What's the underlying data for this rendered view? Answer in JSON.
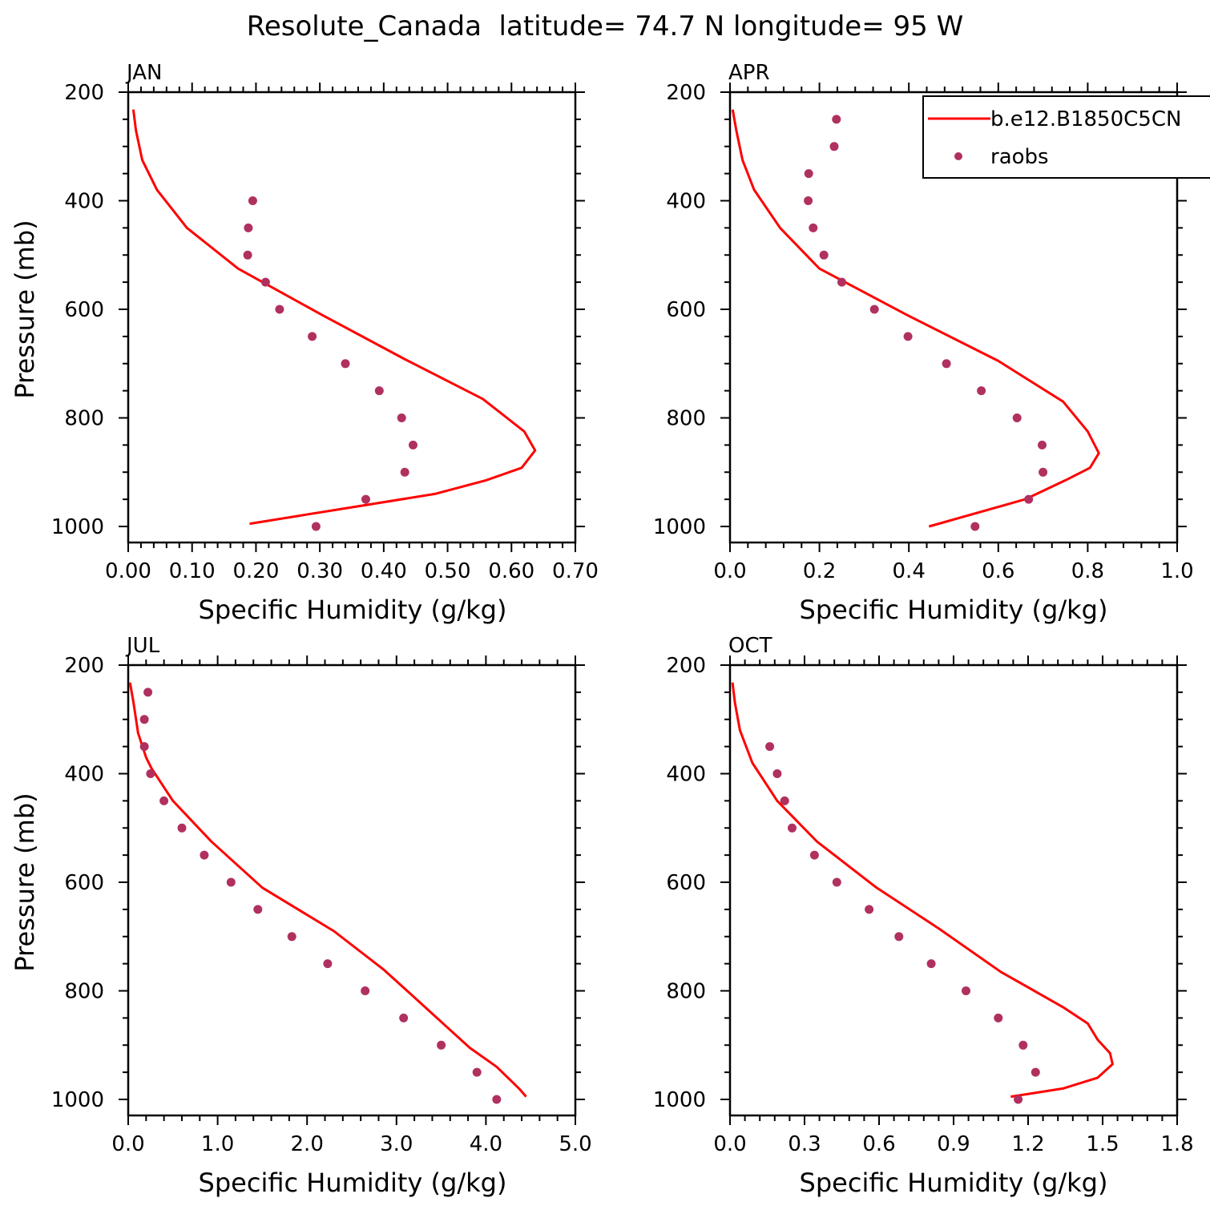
{
  "figure": {
    "title": "Resolute_Canada  latitude= 74.7 N longitude= 95 W"
  },
  "legend": {
    "model_label": "b.e12.B1850C5CN",
    "obs_label": "raobs",
    "position": "top-right of APR panel"
  },
  "colors": {
    "model_line": "#ff0000",
    "obs_marker": "#b03060",
    "axes": "#000000",
    "background": "#ffffff"
  },
  "chart_data": [
    {
      "type": "line+scatter",
      "panel": "JAN",
      "title": "JAN",
      "xlabel": "Specific Humidity (g/kg)",
      "ylabel": "Pressure (mb)",
      "xlim": [
        0.0,
        0.7
      ],
      "ylim": [
        200,
        1000
      ],
      "y_inverted": true,
      "x_ticks": [
        0.0,
        0.1,
        0.2,
        0.3,
        0.4,
        0.5,
        0.6,
        0.7
      ],
      "x_tick_labels": [
        "0.00",
        "0.10",
        "0.20",
        "0.30",
        "0.40",
        "0.50",
        "0.60",
        "0.70"
      ],
      "y_ticks": [
        200,
        400,
        600,
        800,
        1000
      ],
      "y_tick_labels": [
        "200",
        "400",
        "600",
        "800",
        "1000"
      ],
      "series": [
        {
          "name": "b.e12.B1850C5CN",
          "kind": "line",
          "x": [
            0.008,
            0.012,
            0.022,
            0.045,
            0.092,
            0.172,
            0.303,
            0.43,
            0.555,
            0.62,
            0.637,
            0.616,
            0.56,
            0.48,
            0.19
          ],
          "y": [
            232,
            270,
            325,
            380,
            450,
            525,
            610,
            690,
            765,
            825,
            860,
            892,
            915,
            940,
            995
          ]
        },
        {
          "name": "raobs",
          "kind": "scatter",
          "x": [
            0.195,
            0.188,
            0.187,
            0.215,
            0.237,
            0.288,
            0.34,
            0.393,
            0.428,
            0.446,
            0.433,
            0.372,
            0.294
          ],
          "y": [
            400,
            450,
            500,
            550,
            600,
            650,
            700,
            750,
            800,
            850,
            900,
            950,
            1000
          ]
        }
      ]
    },
    {
      "type": "line+scatter",
      "panel": "APR",
      "title": "APR",
      "xlabel": "Specific Humidity (g/kg)",
      "ylabel": "",
      "xlim": [
        0.0,
        1.0
      ],
      "ylim": [
        200,
        1000
      ],
      "y_inverted": true,
      "x_ticks": [
        0.0,
        0.2,
        0.4,
        0.6,
        0.8,
        1.0
      ],
      "x_tick_labels": [
        "0.0",
        "0.2",
        "0.4",
        "0.6",
        "0.8",
        "1.0"
      ],
      "y_ticks": [
        200,
        400,
        600,
        800,
        1000
      ],
      "y_tick_labels": [
        "200",
        "400",
        "600",
        "800",
        "1000"
      ],
      "series": [
        {
          "name": "b.e12.B1850C5CN",
          "kind": "line",
          "x": [
            0.006,
            0.014,
            0.028,
            0.054,
            0.112,
            0.2,
            0.395,
            0.6,
            0.745,
            0.8,
            0.825,
            0.805,
            0.75,
            0.66,
            0.445
          ],
          "y": [
            232,
            270,
            325,
            380,
            450,
            525,
            610,
            695,
            770,
            825,
            865,
            892,
            915,
            950,
            1000
          ]
        },
        {
          "name": "raobs",
          "kind": "scatter",
          "x": [
            0.238,
            0.233,
            0.176,
            0.175,
            0.186,
            0.21,
            0.25,
            0.323,
            0.398,
            0.484,
            0.562,
            0.642,
            0.698,
            0.7,
            0.668,
            0.548
          ],
          "y": [
            250,
            300,
            350,
            400,
            450,
            500,
            550,
            600,
            650,
            700,
            750,
            800,
            850,
            900,
            950,
            1000
          ]
        }
      ]
    },
    {
      "type": "line+scatter",
      "panel": "JUL",
      "title": "JUL",
      "xlabel": "Specific Humidity (g/kg)",
      "ylabel": "Pressure (mb)",
      "xlim": [
        0.0,
        5.0
      ],
      "ylim": [
        200,
        1000
      ],
      "y_inverted": true,
      "x_ticks": [
        0.0,
        1.0,
        2.0,
        3.0,
        4.0,
        5.0
      ],
      "x_tick_labels": [
        "0.0",
        "1.0",
        "2.0",
        "3.0",
        "4.0",
        "5.0"
      ],
      "y_ticks": [
        200,
        400,
        600,
        800,
        1000
      ],
      "y_tick_labels": [
        "200",
        "400",
        "600",
        "800",
        "1000"
      ],
      "series": [
        {
          "name": "b.e12.B1850C5CN",
          "kind": "line",
          "x": [
            0.02,
            0.06,
            0.11,
            0.2,
            0.26,
            0.5,
            0.93,
            1.5,
            2.3,
            2.85,
            3.22,
            3.52,
            3.82,
            4.12,
            4.37,
            4.45
          ],
          "y": [
            232,
            270,
            325,
            370,
            390,
            450,
            525,
            610,
            690,
            760,
            815,
            860,
            905,
            940,
            980,
            995
          ]
        },
        {
          "name": "raobs",
          "kind": "scatter",
          "x": [
            0.22,
            0.18,
            0.18,
            0.25,
            0.4,
            0.6,
            0.85,
            1.15,
            1.45,
            1.83,
            2.23,
            2.65,
            3.08,
            3.5,
            3.9,
            4.12
          ],
          "y": [
            250,
            300,
            350,
            400,
            450,
            500,
            550,
            600,
            650,
            700,
            750,
            800,
            850,
            900,
            950,
            1000
          ]
        }
      ]
    },
    {
      "type": "line+scatter",
      "panel": "OCT",
      "title": "OCT",
      "xlabel": "Specific Humidity (g/kg)",
      "ylabel": "",
      "xlim": [
        0.0,
        1.8
      ],
      "ylim": [
        200,
        1000
      ],
      "y_inverted": true,
      "x_ticks": [
        0.0,
        0.3,
        0.6,
        0.9,
        1.2,
        1.5,
        1.8
      ],
      "x_tick_labels": [
        "0.0",
        "0.3",
        "0.6",
        "0.9",
        "1.2",
        "1.5",
        "1.8"
      ],
      "y_ticks": [
        200,
        400,
        600,
        800,
        1000
      ],
      "y_tick_labels": [
        "200",
        "400",
        "600",
        "800",
        "1000"
      ],
      "series": [
        {
          "name": "b.e12.B1850C5CN",
          "kind": "line",
          "x": [
            0.01,
            0.02,
            0.04,
            0.09,
            0.19,
            0.35,
            0.59,
            0.84,
            1.09,
            1.34,
            1.44,
            1.48,
            1.53,
            1.54,
            1.48,
            1.34,
            1.13
          ],
          "y": [
            232,
            270,
            320,
            380,
            450,
            525,
            610,
            685,
            765,
            830,
            860,
            890,
            915,
            935,
            960,
            980,
            995
          ]
        },
        {
          "name": "raobs",
          "kind": "scatter",
          "x": [
            0.16,
            0.19,
            0.22,
            0.25,
            0.34,
            0.43,
            0.56,
            0.68,
            0.81,
            0.95,
            1.08,
            1.18,
            1.23,
            1.16
          ],
          "y": [
            350,
            400,
            450,
            500,
            550,
            600,
            650,
            700,
            750,
            800,
            850,
            900,
            950,
            1000
          ]
        }
      ]
    }
  ]
}
